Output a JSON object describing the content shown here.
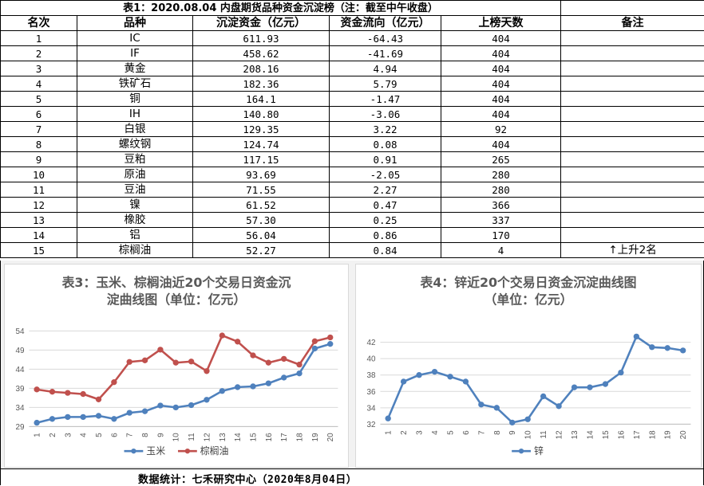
{
  "table1": {
    "title": "表1：2020.08.04 内盘期货品种资金沉淀榜（注：截至中午收盘）",
    "headers": [
      "名次",
      "品种",
      "沉淀资金（亿元）",
      "资金流向（亿元）",
      "上榜天数",
      "备注"
    ],
    "rows": [
      [
        "1",
        "IC",
        "611.93",
        "-64.43",
        "404",
        ""
      ],
      [
        "2",
        "IF",
        "458.62",
        "-41.69",
        "404",
        ""
      ],
      [
        "3",
        "黄金",
        "208.16",
        "4.94",
        "404",
        ""
      ],
      [
        "4",
        "铁矿石",
        "182.36",
        "5.79",
        "404",
        ""
      ],
      [
        "5",
        "铜",
        "164.1",
        "-1.47",
        "404",
        ""
      ],
      [
        "6",
        "IH",
        "140.80",
        "-3.06",
        "404",
        ""
      ],
      [
        "7",
        "白银",
        "129.35",
        "3.22",
        "92",
        ""
      ],
      [
        "8",
        "螺纹钢",
        "124.74",
        "0.08",
        "404",
        ""
      ],
      [
        "9",
        "豆粕",
        "117.15",
        "0.91",
        "265",
        ""
      ],
      [
        "10",
        "原油",
        "93.69",
        "-2.05",
        "280",
        ""
      ],
      [
        "11",
        "豆油",
        "71.55",
        "2.27",
        "280",
        ""
      ],
      [
        "12",
        "镍",
        "61.52",
        "0.47",
        "366",
        ""
      ],
      [
        "13",
        "橡胶",
        "57.30",
        "0.25",
        "337",
        ""
      ],
      [
        "14",
        "铝",
        "56.04",
        "0.86",
        "170",
        ""
      ],
      [
        "15",
        "棕榈油",
        "52.27",
        "0.84",
        "4",
        "↑上升2名"
      ]
    ]
  },
  "chart_data": [
    {
      "type": "line",
      "title": "表3：玉米、棕榈油近20个交易日资金沉淀曲线图（单位：亿元）",
      "title_lines": [
        "表3：玉米、棕榈油近20个交易日资金沉",
        "淀曲线图（单位：亿元）"
      ],
      "x": [
        "1",
        "2",
        "3",
        "4",
        "5",
        "6",
        "7",
        "8",
        "9",
        "10",
        "11",
        "12",
        "13",
        "14",
        "15",
        "16",
        "17",
        "18",
        "19",
        "20"
      ],
      "yticks": [
        29,
        34,
        39,
        44,
        49,
        54
      ],
      "ylim": [
        29,
        54
      ],
      "grid": true,
      "legend": "bottom",
      "series": [
        {
          "name": "玉米",
          "color": "#4f81bd",
          "values": [
            30.0,
            31.0,
            31.5,
            31.5,
            31.8,
            31.0,
            32.6,
            33.0,
            34.5,
            34.0,
            34.6,
            36.0,
            38.3,
            39.3,
            39.5,
            40.3,
            41.8,
            42.9,
            49.4,
            50.6
          ]
        },
        {
          "name": "棕榈油",
          "color": "#c0504d",
          "values": [
            38.7,
            38.1,
            37.8,
            37.5,
            36.1,
            40.6,
            45.9,
            46.3,
            49.1,
            45.7,
            46.0,
            43.5,
            52.8,
            51.2,
            47.6,
            45.7,
            46.7,
            45.2,
            51.3,
            52.3
          ]
        }
      ]
    },
    {
      "type": "line",
      "title": "表4：锌近20个交易日资金沉淀曲线图（单位：亿元）",
      "title_lines": [
        "表4：锌近20个交易日资金沉淀曲线图",
        "（单位：亿元）"
      ],
      "x": [
        "1",
        "2",
        "3",
        "4",
        "5",
        "6",
        "7",
        "8",
        "9",
        "10",
        "11",
        "12",
        "13",
        "14",
        "15",
        "16",
        "17",
        "18",
        "19",
        "20"
      ],
      "yticks": [
        32,
        34,
        36,
        38,
        40,
        42
      ],
      "ylim": [
        32,
        43
      ],
      "grid": true,
      "legend": "bottom",
      "series": [
        {
          "name": "锌",
          "color": "#4f81bd",
          "values": [
            32.7,
            37.2,
            38.0,
            38.4,
            37.8,
            37.2,
            34.4,
            34.0,
            32.2,
            32.6,
            35.4,
            34.2,
            36.5,
            36.5,
            36.9,
            38.3,
            42.7,
            41.4,
            41.3,
            41.0
          ]
        }
      ]
    }
  ],
  "footer": "数据统计：七禾研究中心（2020年8月04日）"
}
